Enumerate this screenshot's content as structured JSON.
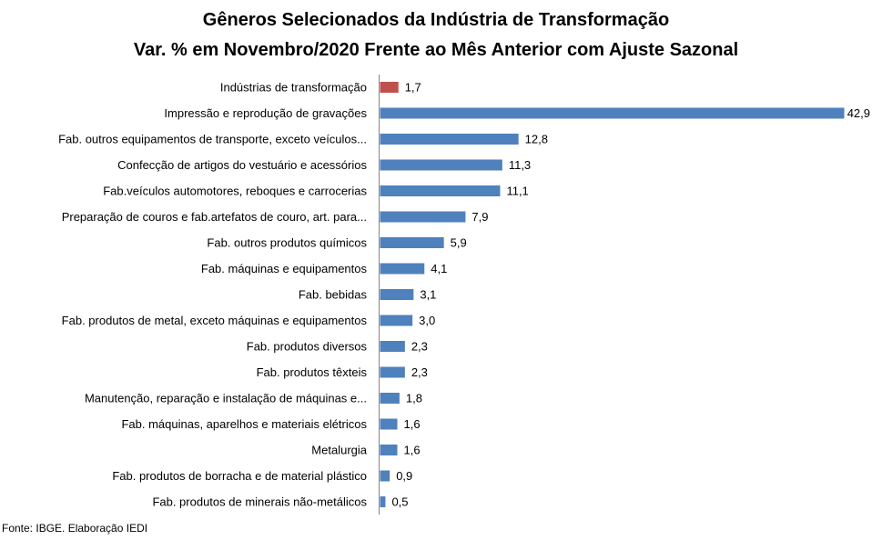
{
  "chart_data": {
    "type": "bar",
    "orientation": "horizontal",
    "title": [
      "Gêneros Selecionados da Indústria de Transformação",
      "Var. % em Novembro/2020 Frente ao Mês Anterior com Ajuste Sazonal"
    ],
    "categories": [
      "Indústrias de transformação",
      "Impressão e reprodução de gravações",
      "Fab. outros equipamentos de transporte, exceto veículos...",
      "Confecção de artigos do vestuário e acessórios",
      "Fab.veículos automotores, reboques e carrocerias",
      "Preparação de couros e fab.artefatos de couro, art. para...",
      "Fab. outros produtos químicos",
      "Fab. máquinas e equipamentos",
      "Fab. bebidas",
      "Fab. produtos de metal, exceto máquinas e equipamentos",
      "Fab. produtos diversos",
      "Fab. produtos têxteis",
      "Manutenção, reparação e instalação de máquinas e...",
      "Fab. máquinas, aparelhos e materiais elétricos",
      "Metalurgia",
      "Fab. produtos de borracha e de material plástico",
      "Fab. produtos de minerais não-metálicos"
    ],
    "values": [
      1.7,
      42.9,
      12.8,
      11.3,
      11.1,
      7.9,
      5.9,
      4.1,
      3.1,
      3.0,
      2.3,
      2.3,
      1.8,
      1.6,
      1.6,
      0.9,
      0.5
    ],
    "value_labels": [
      "1,7",
      "42,9",
      "12,8",
      "11,3",
      "11,1",
      "7,9",
      "5,9",
      "4,1",
      "3,1",
      "3,0",
      "2,3",
      "2,3",
      "1,8",
      "1,6",
      "1,6",
      "0,9",
      "0,5"
    ],
    "xlim": [
      0,
      42.9
    ],
    "colors": {
      "highlight": "#c0504d",
      "bar": "#4f81bd",
      "axis": "#868686"
    },
    "grid": false,
    "legend": "none"
  },
  "footer": {
    "source": "Fonte: IBGE. Elaboração IEDI"
  }
}
